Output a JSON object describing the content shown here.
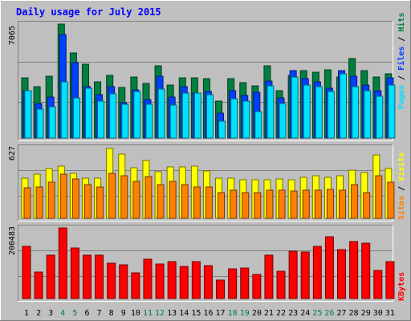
{
  "title": "Daily usage for July 2015",
  "colors": {
    "background": "#c0c0c0",
    "frame_light": "#ffffff",
    "frame_dark": "#808080",
    "plot_bg": "#bfbfbf",
    "grid": "#808080",
    "title_text": "#0000ff",
    "hits": "#008040",
    "files": "#0040ff",
    "pages": "#00e0ff",
    "visits": "#ffff00",
    "sites": "#ff8000",
    "kbytes": "#ff0000",
    "weekend_label": "#008040",
    "weekday_label": "#000000"
  },
  "panels": {
    "top_max_label": "7065",
    "middle_max_label": "627",
    "bottom_max_label": "200483"
  },
  "right_labels": {
    "pages": "Pages",
    "files": "Files",
    "hits": "Hits",
    "sep1": " / ",
    "sep2": " / ",
    "sites": "Sites",
    "visits": "Visits",
    "sep3": " / ",
    "kbytes": "KBytes"
  },
  "chart_data": [
    {
      "type": "bar",
      "panel": "top",
      "categories": [
        "1",
        "2",
        "3",
        "4",
        "5",
        "6",
        "7",
        "8",
        "9",
        "10",
        "11",
        "12",
        "13",
        "14",
        "15",
        "16",
        "17",
        "18",
        "19",
        "20",
        "21",
        "22",
        "23",
        "24",
        "25",
        "26",
        "27",
        "28",
        "29",
        "30",
        "31"
      ],
      "ymax": 7065,
      "series": [
        {
          "name": "Hits",
          "values": [
            3720,
            3160,
            3840,
            7065,
            5250,
            4600,
            3470,
            3860,
            3130,
            3800,
            3400,
            4480,
            3290,
            3720,
            3720,
            3680,
            2300,
            3670,
            3410,
            3250,
            4480,
            2930,
            3860,
            4180,
            4100,
            4210,
            3780,
            4950,
            4180,
            3760,
            3980
          ]
        },
        {
          "name": "Files",
          "values": [
            2960,
            2140,
            2560,
            6400,
            4700,
            3180,
            2680,
            3170,
            2180,
            3010,
            2390,
            3810,
            2520,
            3170,
            2790,
            2910,
            1540,
            2940,
            2630,
            2850,
            3520,
            2510,
            4180,
            3700,
            3470,
            3100,
            4180,
            3810,
            3270,
            2940,
            3720
          ]
        },
        {
          "name": "Pages",
          "values": [
            2940,
            1800,
            1960,
            3500,
            2470,
            3100,
            2300,
            2760,
            2080,
            2900,
            2080,
            3020,
            2060,
            2810,
            2790,
            2700,
            1060,
            2420,
            2290,
            1620,
            3210,
            2120,
            3780,
            3280,
            3190,
            2880,
            4000,
            3170,
            2960,
            2600,
            3290
          ]
        }
      ],
      "weekends": [
        "4",
        "5",
        "11",
        "12",
        "18",
        "19",
        "25",
        "26"
      ]
    },
    {
      "type": "bar",
      "panel": "middle",
      "categories": [
        "1",
        "2",
        "3",
        "4",
        "5",
        "6",
        "7",
        "8",
        "9",
        "10",
        "11",
        "12",
        "13",
        "14",
        "15",
        "16",
        "17",
        "18",
        "19",
        "20",
        "21",
        "22",
        "23",
        "24",
        "25",
        "26",
        "27",
        "28",
        "29",
        "30",
        "31"
      ],
      "ymax": 627,
      "series": [
        {
          "name": "Visits",
          "values": [
            355,
            395,
            440,
            465,
            400,
            355,
            355,
            620,
            570,
            450,
            510,
            415,
            455,
            455,
            465,
            420,
            355,
            355,
            340,
            340,
            345,
            350,
            345,
            360,
            380,
            365,
            380,
            430,
            405,
            560,
            440
          ]
        },
        {
          "name": "Sites",
          "values": [
            270,
            280,
            320,
            390,
            350,
            300,
            280,
            400,
            380,
            330,
            370,
            300,
            330,
            300,
            280,
            280,
            230,
            250,
            230,
            230,
            250,
            250,
            240,
            250,
            250,
            260,
            250,
            300,
            230,
            380,
            320
          ]
        }
      ]
    },
    {
      "type": "bar",
      "panel": "bottom",
      "categories": [
        "1",
        "2",
        "3",
        "4",
        "5",
        "6",
        "7",
        "8",
        "9",
        "10",
        "11",
        "12",
        "13",
        "14",
        "15",
        "16",
        "17",
        "18",
        "19",
        "20",
        "21",
        "22",
        "23",
        "24",
        "25",
        "26",
        "27",
        "28",
        "29",
        "30",
        "31"
      ],
      "ymax": 200483,
      "series": [
        {
          "name": "KBytes",
          "values": [
            148000,
            76000,
            124000,
            200483,
            143000,
            124000,
            123000,
            101000,
            96000,
            74000,
            112000,
            99000,
            104000,
            91000,
            105000,
            93000,
            53000,
            84000,
            86000,
            68000,
            124000,
            78000,
            134000,
            132000,
            148000,
            176000,
            138000,
            161000,
            158000,
            79000,
            104000
          ]
        }
      ]
    }
  ]
}
